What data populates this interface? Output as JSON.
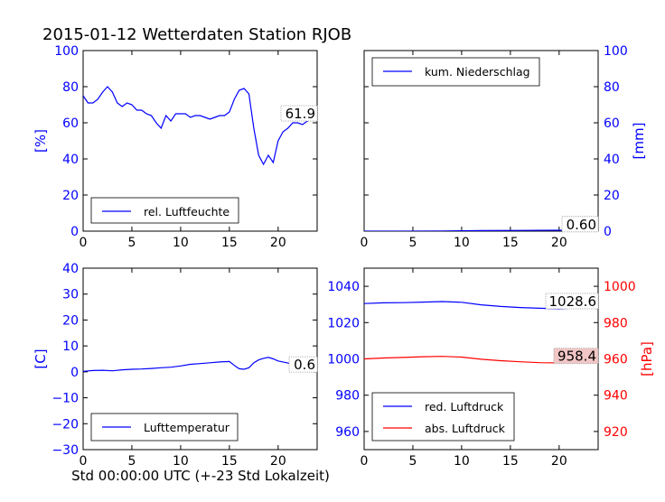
{
  "figure": {
    "title": "2015-01-12 Wetterdaten Station RJOB",
    "xlabel": "Std 00:00:00 UTC (+-23 Std Lokalzeit)"
  },
  "colors": {
    "blue": "#0000ff",
    "red": "#ff0000",
    "black": "#000000",
    "label_bg_red": "#f2c6c6"
  },
  "chart_data": [
    {
      "type": "line",
      "panel": "top-left",
      "ylabel": "[%]",
      "xlim": [
        0,
        24
      ],
      "ylim": [
        0,
        100
      ],
      "xticks": [
        0,
        5,
        10,
        15,
        20
      ],
      "yticks": [
        0,
        20,
        40,
        60,
        80,
        100
      ],
      "legend_position": "bottom-left",
      "series": [
        {
          "name": "rel. Luftfeuchte",
          "color": "#0000ff",
          "x": [
            0,
            0.5,
            1,
            1.5,
            2,
            2.5,
            3,
            3.5,
            4,
            4.5,
            5,
            5.5,
            6,
            6.5,
            7,
            7.5,
            8,
            8.5,
            9,
            9.5,
            10,
            10.5,
            11,
            11.5,
            12,
            12.5,
            13,
            13.5,
            14,
            14.5,
            15,
            15.5,
            16,
            16.5,
            17,
            17.5,
            18,
            18.5,
            19,
            19.5,
            20,
            20.5,
            21,
            21.5,
            22,
            22.5,
            23,
            23.5,
            24
          ],
          "y": [
            75,
            71,
            71,
            73,
            77,
            80,
            77,
            71,
            69,
            71,
            70,
            67,
            67,
            65,
            64,
            60,
            57,
            64,
            61,
            65,
            65,
            65,
            63,
            64,
            64,
            63,
            62,
            63,
            64,
            64,
            66,
            73,
            78,
            79,
            76,
            57,
            42,
            37,
            42,
            38,
            50,
            55,
            57,
            60,
            60,
            59,
            61,
            62,
            62
          ]
        }
      ],
      "last_value_label": "61.9"
    },
    {
      "type": "line",
      "panel": "top-right",
      "ylabel": "[mm]",
      "xlim": [
        0,
        24
      ],
      "ylim": [
        0,
        100
      ],
      "xticks": [
        0,
        5,
        10,
        15,
        20
      ],
      "yticks": [
        0,
        20,
        40,
        60,
        80,
        100
      ],
      "legend_position": "top-left",
      "series": [
        {
          "name": "kum. Niederschlag",
          "color": "#0000ff",
          "x": [
            0,
            4,
            8,
            10,
            12,
            16,
            20,
            24
          ],
          "y": [
            0,
            0,
            0.1,
            0.2,
            0.3,
            0.4,
            0.5,
            0.6
          ]
        }
      ],
      "last_value_label": "0.60"
    },
    {
      "type": "line",
      "panel": "bottom-left",
      "ylabel": "[C]",
      "xlim": [
        0,
        24
      ],
      "ylim": [
        -30,
        40
      ],
      "xticks": [
        0,
        5,
        10,
        15,
        20
      ],
      "yticks": [
        -30,
        -20,
        -10,
        0,
        10,
        20,
        30,
        40
      ],
      "legend_position": "bottom-left",
      "series": [
        {
          "name": "Lufttemperatur",
          "color": "#0000ff",
          "x": [
            0,
            1,
            2,
            3,
            4,
            5,
            6,
            7,
            8,
            9,
            10,
            11,
            12,
            13,
            14,
            15,
            15.5,
            16,
            16.5,
            17,
            17.5,
            18,
            18.5,
            19,
            19.5,
            20,
            21,
            22,
            23,
            24
          ],
          "y": [
            0.2,
            0.5,
            0.6,
            0.4,
            0.8,
            1.0,
            1.1,
            1.3,
            1.6,
            1.8,
            2.3,
            2.9,
            3.2,
            3.5,
            3.8,
            4.0,
            2.5,
            1.2,
            1.0,
            1.6,
            3.5,
            4.6,
            5.2,
            5.6,
            5.0,
            4.2,
            3.4,
            2.0,
            1.0,
            0.6
          ]
        }
      ],
      "last_value_label": "0.6"
    },
    {
      "type": "line",
      "panel": "bottom-right",
      "ylabel_right": "[hPa]",
      "xlim": [
        0,
        24
      ],
      "ylim_left": [
        950,
        1050
      ],
      "ylim_right": [
        910,
        1010
      ],
      "xticks": [
        0,
        5,
        10,
        15,
        20
      ],
      "yticks_left": [
        960,
        980,
        1000,
        1020,
        1040
      ],
      "yticks_right": [
        920,
        940,
        960,
        980,
        1000
      ],
      "legend_position": "bottom-left",
      "series": [
        {
          "name": "red. Luftdruck",
          "color": "#0000ff",
          "axis": "left",
          "x": [
            0,
            2,
            4,
            6,
            8,
            10,
            12,
            14,
            16,
            18,
            20,
            22,
            24
          ],
          "y": [
            1030.5,
            1030.9,
            1031.0,
            1031.3,
            1031.6,
            1031.2,
            1029.8,
            1028.9,
            1028.3,
            1027.9,
            1027.6,
            1028.2,
            1028.6
          ]
        },
        {
          "name": "abs. Luftdruck",
          "color": "#ff0000",
          "axis": "right",
          "x": [
            0,
            2,
            4,
            6,
            8,
            10,
            12,
            14,
            16,
            18,
            20,
            22,
            24
          ],
          "y": [
            960.0,
            960.5,
            960.8,
            961.2,
            961.4,
            961.0,
            959.8,
            959.0,
            958.4,
            957.9,
            957.8,
            958.2,
            958.4
          ]
        }
      ],
      "last_value_labels": [
        "1028.6",
        "958.4"
      ]
    }
  ]
}
